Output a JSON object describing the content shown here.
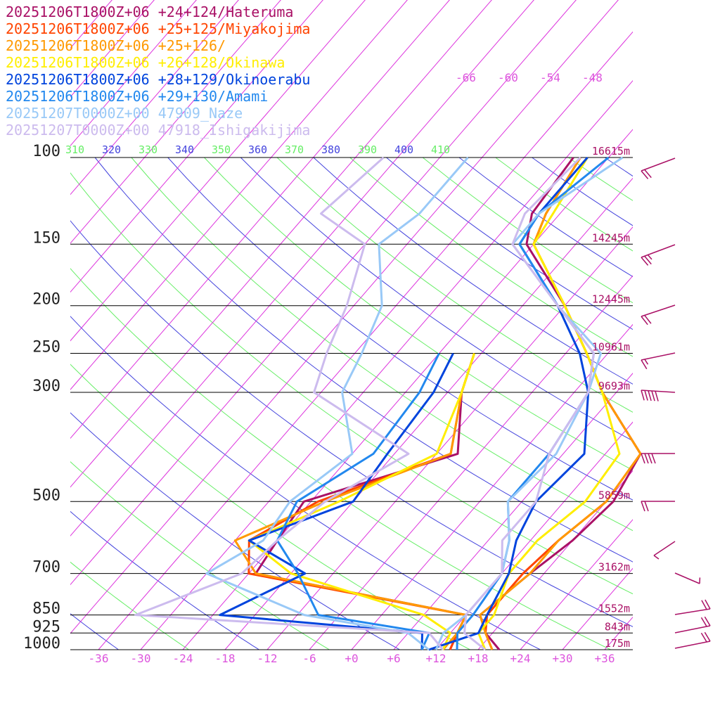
{
  "chart_data": {
    "type": "line",
    "title": "",
    "xlabel": "",
    "ylabel": "",
    "y_scale": "log-pressure",
    "pressure_levels": [
      1000,
      925,
      850,
      700,
      500,
      300,
      250,
      200,
      150,
      100
    ],
    "pressure_labels": [
      "1000",
      "925",
      "850",
      "700",
      "500",
      "300",
      "250",
      "200",
      "150",
      "100"
    ],
    "temperature_ticks": [
      "-36",
      "-30",
      "-24",
      "-18",
      "-12",
      "-6",
      "+0",
      "+6",
      "+12",
      "+18",
      "+24",
      "+30",
      "+36"
    ],
    "temperature_tick_values": [
      -36,
      -30,
      -24,
      -18,
      -12,
      -6,
      0,
      6,
      12,
      18,
      24,
      30,
      36
    ],
    "height_labels": [
      {
        "p": 100,
        "text": "16615m"
      },
      {
        "p": 150,
        "text": "14245m"
      },
      {
        "p": 200,
        "text": "12445m"
      },
      {
        "p": 250,
        "text": "10961m"
      },
      {
        "p": 300,
        "text": "9693m"
      },
      {
        "p": 500,
        "text": "5859m"
      },
      {
        "p": 700,
        "text": "3162m"
      },
      {
        "p": 850,
        "text": "1552m"
      },
      {
        "p": 925,
        "text": "843m"
      },
      {
        "p": 1000,
        "text": "175m"
      }
    ],
    "theta_labels": [
      {
        "text": "310",
        "color": "#66ee66"
      },
      {
        "text": "320",
        "color": "#4444dd"
      },
      {
        "text": "330",
        "color": "#66ee66"
      },
      {
        "text": "340",
        "color": "#4444dd"
      },
      {
        "text": "350",
        "color": "#66ee66"
      },
      {
        "text": "360",
        "color": "#4444dd"
      },
      {
        "text": "370",
        "color": "#66ee66"
      },
      {
        "text": "380",
        "color": "#4444dd"
      },
      {
        "text": "390",
        "color": "#66ee66"
      },
      {
        "text": "400",
        "color": "#4444dd"
      },
      {
        "text": "410",
        "color": "#66ee66"
      }
    ],
    "isotherm_labels": [
      "-66",
      "-60",
      "-54",
      "-48"
    ],
    "series": [
      {
        "name": "20251206T1800Z+06 +24+124/Hateruma",
        "color": "#aa1166",
        "temperature": [
          [
            1000,
            21
          ],
          [
            925,
            17
          ],
          [
            850,
            14
          ],
          [
            700,
            16
          ],
          [
            600,
            18
          ],
          [
            500,
            19
          ],
          [
            400,
            17
          ],
          [
            300,
            4
          ],
          [
            250,
            -3
          ],
          [
            200,
            -12
          ],
          [
            150,
            -25
          ],
          [
            130,
            -28
          ],
          [
            100,
            -29
          ]
        ],
        "dewpoint": [
          [
            1000,
            14
          ],
          [
            925,
            13
          ],
          [
            850,
            12
          ],
          [
            700,
            -23
          ],
          [
            600,
            -24
          ],
          [
            500,
            -25
          ],
          [
            400,
            -9
          ],
          [
            300,
            -16
          ],
          [
            250,
            -19
          ]
        ]
      },
      {
        "name": "20251206T1800Z+06 +25+125/Miyakojima",
        "color": "#ff4400",
        "temperature": [
          [
            1000,
            20
          ],
          [
            925,
            17
          ],
          [
            850,
            15
          ],
          [
            700,
            15
          ],
          [
            600,
            16
          ],
          [
            500,
            18
          ],
          [
            400,
            17
          ],
          [
            300,
            4
          ],
          [
            250,
            -3
          ],
          [
            200,
            -12
          ],
          [
            150,
            -24
          ],
          [
            130,
            -26
          ],
          [
            100,
            -28
          ]
        ],
        "dewpoint": [
          [
            1000,
            14
          ],
          [
            925,
            13
          ],
          [
            850,
            12
          ],
          [
            700,
            -24
          ],
          [
            600,
            -28
          ],
          [
            500,
            -23
          ],
          [
            400,
            -10
          ],
          [
            300,
            -16
          ],
          [
            250,
            -19
          ]
        ]
      },
      {
        "name": "20251206T1800Z+06 +25+126/",
        "color": "#ff9900",
        "temperature": [
          [
            1000,
            20
          ],
          [
            925,
            17
          ],
          [
            850,
            14
          ],
          [
            700,
            16
          ],
          [
            600,
            16
          ],
          [
            500,
            18
          ],
          [
            400,
            17
          ],
          [
            300,
            4
          ],
          [
            250,
            -3
          ],
          [
            200,
            -12
          ],
          [
            150,
            -24
          ],
          [
            130,
            -26
          ],
          [
            100,
            -28
          ]
        ],
        "dewpoint": [
          [
            1000,
            13
          ],
          [
            925,
            13
          ],
          [
            850,
            12
          ],
          [
            700,
            -23
          ],
          [
            600,
            -30
          ],
          [
            500,
            -22
          ],
          [
            400,
            -10
          ],
          [
            300,
            -16
          ],
          [
            250,
            -19
          ]
        ]
      },
      {
        "name": "20251206T1800Z+06 +26+128/Okinawa",
        "color": "#ffee00",
        "temperature": [
          [
            1000,
            19
          ],
          [
            925,
            16
          ],
          [
            850,
            16
          ],
          [
            700,
            13
          ],
          [
            600,
            13
          ],
          [
            500,
            15
          ],
          [
            400,
            14
          ],
          [
            300,
            4
          ],
          [
            250,
            -3
          ],
          [
            200,
            -12
          ],
          [
            150,
            -24
          ],
          [
            130,
            -25
          ],
          [
            100,
            -27
          ]
        ],
        "dewpoint": [
          [
            1000,
            13
          ],
          [
            925,
            12
          ],
          [
            850,
            6
          ],
          [
            700,
            -18
          ],
          [
            600,
            -28
          ],
          [
            500,
            -20
          ],
          [
            400,
            -12
          ],
          [
            300,
            -16
          ],
          [
            250,
            -19
          ]
        ]
      },
      {
        "name": "20251206T1800Z+06 +28+129/Okinoerabu",
        "color": "#0044dd",
        "temperature": [
          [
            1000,
            11
          ],
          [
            925,
            16
          ],
          [
            850,
            15
          ],
          [
            700,
            13
          ],
          [
            600,
            10
          ],
          [
            500,
            8
          ],
          [
            400,
            9
          ],
          [
            300,
            2
          ],
          [
            250,
            -4
          ],
          [
            200,
            -13
          ],
          [
            150,
            -26
          ],
          [
            130,
            -27
          ],
          [
            100,
            -27
          ]
        ],
        "dewpoint": [
          [
            1000,
            10
          ],
          [
            925,
            8
          ],
          [
            850,
            -23
          ],
          [
            700,
            -16
          ],
          [
            600,
            -28
          ],
          [
            500,
            -18
          ],
          [
            400,
            -19
          ],
          [
            300,
            -20
          ],
          [
            250,
            -22
          ]
        ]
      },
      {
        "name": "20251206T1800Z+06 +29+130/Amami",
        "color": "#2288ee",
        "temperature": [
          [
            1000,
            15
          ],
          [
            925,
            13
          ],
          [
            850,
            13
          ],
          [
            700,
            12
          ],
          [
            600,
            9
          ],
          [
            500,
            4
          ],
          [
            400,
            4
          ],
          [
            300,
            2
          ],
          [
            250,
            -2
          ],
          [
            200,
            -13
          ],
          [
            150,
            -26
          ],
          [
            130,
            -27
          ],
          [
            100,
            -24
          ]
        ],
        "dewpoint": [
          [
            1000,
            10
          ],
          [
            925,
            9
          ],
          [
            850,
            -9
          ],
          [
            700,
            -17
          ],
          [
            600,
            -24
          ],
          [
            500,
            -26
          ],
          [
            400,
            -21
          ],
          [
            300,
            -22
          ],
          [
            250,
            -24
          ]
        ]
      },
      {
        "name": "20251207T0000Z+00 47909_Naze",
        "color": "#99c9f7",
        "temperature": [
          [
            1000,
            12
          ],
          [
            925,
            11
          ],
          [
            850,
            12
          ],
          [
            700,
            12
          ],
          [
            600,
            9
          ],
          [
            500,
            4
          ],
          [
            400,
            5
          ],
          [
            300,
            2
          ],
          [
            250,
            -1
          ],
          [
            200,
            -13
          ],
          [
            150,
            -27
          ],
          [
            130,
            -27
          ],
          [
            100,
            -22
          ]
        ],
        "dewpoint": [
          [
            1000,
            11
          ],
          [
            925,
            6
          ],
          [
            850,
            -11
          ],
          [
            700,
            -30
          ],
          [
            600,
            -26
          ],
          [
            500,
            -27
          ],
          [
            400,
            -24
          ],
          [
            300,
            -33
          ],
          [
            250,
            -35
          ],
          [
            200,
            -38
          ],
          [
            150,
            -46
          ],
          [
            130,
            -44
          ],
          [
            100,
            -44
          ]
        ]
      },
      {
        "name": "20251207T0000Z+00 47918_Ishigakijima",
        "color": "#ccbbee",
        "temperature": [
          [
            1000,
            19
          ],
          [
            925,
            14
          ],
          [
            850,
            12
          ],
          [
            700,
            12
          ],
          [
            600,
            8
          ],
          [
            500,
            8
          ],
          [
            400,
            4
          ],
          [
            300,
            2
          ],
          [
            250,
            -2
          ],
          [
            200,
            -13
          ],
          [
            150,
            -27
          ],
          [
            130,
            -29
          ],
          [
            100,
            -28
          ]
        ],
        "dewpoint": [
          [
            1000,
            13
          ],
          [
            925,
            9
          ],
          [
            850,
            -35
          ],
          [
            700,
            -25
          ],
          [
            600,
            -24
          ],
          [
            500,
            -22
          ],
          [
            400,
            -16
          ],
          [
            300,
            -37
          ],
          [
            250,
            -40
          ],
          [
            200,
            -43
          ],
          [
            150,
            -48
          ],
          [
            130,
            -58
          ],
          [
            100,
            -56
          ]
        ]
      }
    ],
    "wind_barbs": [
      {
        "p": 100,
        "speed_kt": 20,
        "shaft_end": [
          960,
          225
        ],
        "tip": [
          912,
          243
        ]
      },
      {
        "p": 150,
        "speed_kt": 25,
        "shaft_end": [
          960,
          348
        ],
        "tip": [
          912,
          366
        ]
      },
      {
        "p": 200,
        "speed_kt": 20,
        "shaft_end": [
          960,
          434
        ],
        "tip": [
          912,
          450
        ]
      },
      {
        "p": 250,
        "speed_kt": 15,
        "shaft_end": [
          960,
          502
        ],
        "tip": [
          912,
          512
        ]
      },
      {
        "p": 300,
        "speed_kt": 50,
        "shaft_end": [
          960,
          558
        ],
        "tip": [
          912,
          555
        ]
      },
      {
        "p": 400,
        "speed_kt": 40,
        "shaft_end": [
          960,
          645
        ],
        "tip": [
          912,
          645
        ]
      },
      {
        "p": 500,
        "speed_kt": 20,
        "shaft_end": [
          960,
          713
        ],
        "tip": [
          912,
          713
        ]
      },
      {
        "p": 600,
        "speed_kt": 5,
        "shaft_end": [
          960,
          770
        ],
        "tip": [
          930,
          790
        ]
      },
      {
        "p": 700,
        "speed_kt": 5,
        "shaft_end": [
          960,
          815
        ],
        "tip": [
          995,
          830
        ]
      },
      {
        "p": 850,
        "speed_kt": 20,
        "shaft_end": [
          960,
          874
        ],
        "tip": [
          1010,
          866
        ]
      },
      {
        "p": 925,
        "speed_kt": 20,
        "shaft_end": [
          960,
          900
        ],
        "tip": [
          1010,
          890
        ]
      },
      {
        "p": 1000,
        "speed_kt": 20,
        "shaft_end": [
          960,
          922
        ],
        "tip": [
          1010,
          912
        ]
      }
    ],
    "colors": {
      "frame": "#000000",
      "dry_adiabat_green": "#66ee66",
      "dry_adiabat_blue": "#4444dd",
      "isotherm": "#dd33dd",
      "tick_text": "#dd55dd",
      "barb": "#aa1166",
      "height_text": "#aa1166"
    }
  }
}
